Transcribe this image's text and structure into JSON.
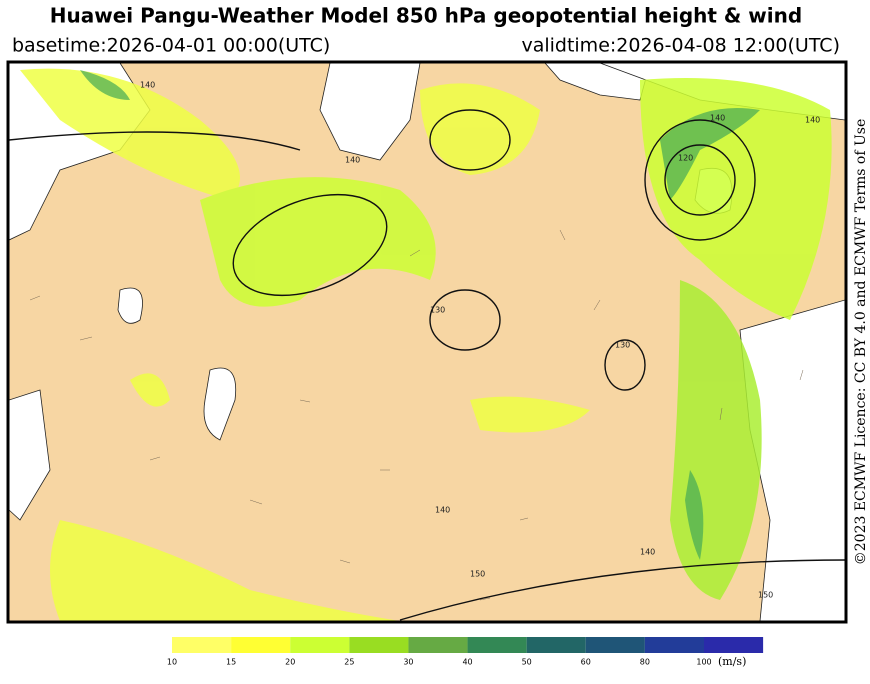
{
  "header": {
    "title": "Huawei Pangu-Weather Model 850 hPa geopotential height & wind",
    "basetime": "basetime:2026-04-01 00:00(UTC)",
    "validtime": "validtime:2026-04-08 12:00(UTC)"
  },
  "map": {
    "contour_labels": [
      "140",
      "140",
      "140",
      "130",
      "120",
      "130",
      "140",
      "140",
      "150",
      "140",
      "150"
    ]
  },
  "colorbar": {
    "ticks": [
      10,
      15,
      20,
      25,
      30,
      40,
      50,
      60,
      80,
      100
    ],
    "colors": [
      "#ffff66",
      "#ffff33",
      "#ccff33",
      "#99dd22",
      "#66aa44",
      "#338855",
      "#226666",
      "#1f5577",
      "#223c99",
      "#2a2aaa"
    ],
    "unit": "(m/s)"
  },
  "credit": "©2023 ECMWF Licence: CC BY 4.0 and ECMWF Terms of Use"
}
